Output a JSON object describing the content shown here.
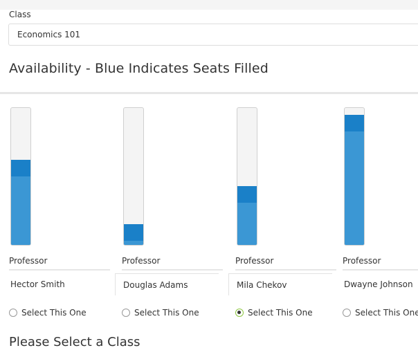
{
  "class_field": {
    "label": "Class",
    "value": "Economics 101"
  },
  "availability": {
    "title": "Availability - Blue Indicates Seats Filled",
    "professors": [
      {
        "role_label": "Professor",
        "name": "Hector Smith",
        "filled_fraction": 0.62,
        "select_label": "Select This One",
        "selected": false
      },
      {
        "role_label": "Professor",
        "name": "Douglas Adams",
        "filled_fraction": 0.15,
        "select_label": "Select This One",
        "selected": false
      },
      {
        "role_label": "Professor",
        "name": "Mila Chekov",
        "filled_fraction": 0.43,
        "select_label": "Select This One",
        "selected": true
      },
      {
        "role_label": "Professor",
        "name": "Dwayne Johnson",
        "filled_fraction": 0.95,
        "select_label": "Select This One",
        "selected": false
      }
    ]
  },
  "status_message": "Please Select a Class",
  "colors": {
    "seat_fill": "#1f88cc",
    "selected_radio": "#8cc641"
  }
}
